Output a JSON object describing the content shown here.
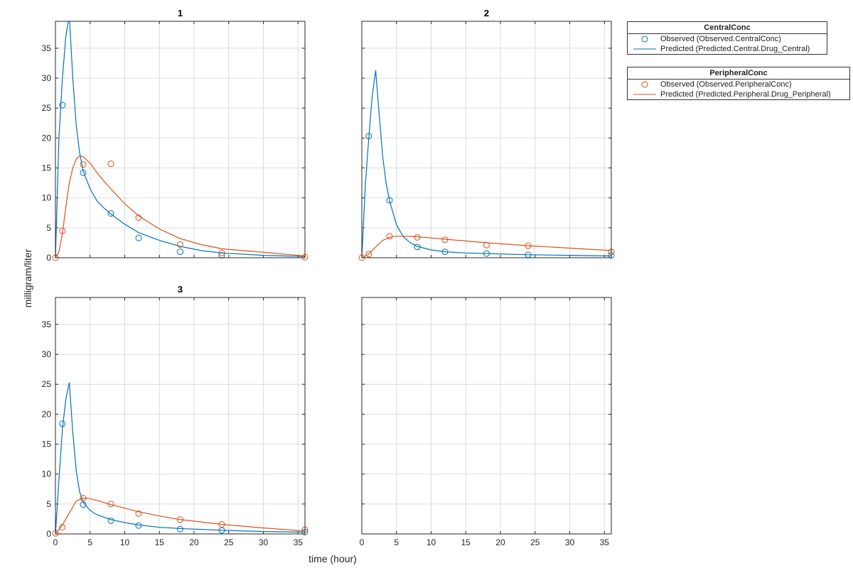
{
  "figure": {
    "xlabel": "time (hour)",
    "ylabel": "milligram/liter"
  },
  "colors": {
    "central": "#0072BD",
    "peripheral": "#D95319",
    "grid": "#dcdcdc",
    "axis": "#262626"
  },
  "legends": [
    {
      "title": "CentralConc",
      "entries": [
        {
          "label": "Observed (Observed.CentralConc)",
          "symbol": "circle"
        },
        {
          "label": "Predicted (Predicted.Central.Drug_Central)",
          "symbol": "line"
        }
      ]
    },
    {
      "title": "PeripheralConc",
      "entries": [
        {
          "label": "Observed (Observed.PeripheralConc)",
          "symbol": "circle"
        },
        {
          "label": "Predicted (Predicted.Peripheral.Drug_Peripheral)",
          "symbol": "line"
        }
      ]
    }
  ],
  "chart_data": [
    {
      "type": "line",
      "title": "1",
      "xlim": [
        0,
        36
      ],
      "ylim": [
        0,
        39.5
      ],
      "xticks": [
        0,
        5,
        10,
        15,
        20,
        25,
        30,
        35
      ],
      "yticks": [
        0,
        5,
        10,
        15,
        20,
        25,
        30,
        35
      ],
      "grid": true,
      "series": [
        {
          "name": "Observed (Observed.CentralConc)",
          "kind": "scatter",
          "color": "central",
          "x": [
            1,
            4,
            8,
            12,
            18,
            24
          ],
          "y": [
            25.5,
            14.2,
            7.4,
            3.3,
            1.0,
            0.4
          ]
        },
        {
          "name": "Predicted (Predicted.Central.Drug_Central)",
          "kind": "line",
          "color": "central",
          "x": [
            0,
            0.5,
            1,
            1.5,
            2,
            2.5,
            3,
            3.5,
            4,
            5,
            6,
            7,
            8,
            10,
            12,
            15,
            18,
            21,
            24,
            30,
            36
          ],
          "y": [
            0,
            20,
            30,
            37,
            40.5,
            30,
            22,
            17.5,
            14.5,
            11.5,
            9.5,
            8.3,
            7.3,
            5.6,
            4.2,
            2.9,
            1.9,
            1.2,
            0.8,
            0.4,
            0.2
          ]
        },
        {
          "name": "Observed (Observed.PeripheralConc)",
          "kind": "scatter",
          "color": "peripheral",
          "x": [
            0,
            1,
            4,
            8,
            12,
            18,
            24,
            36
          ],
          "y": [
            0,
            4.5,
            15.6,
            15.7,
            6.7,
            2.2,
            0.8,
            0.1
          ]
        },
        {
          "name": "Predicted (Predicted.Peripheral.Drug_Peripheral)",
          "kind": "line",
          "color": "peripheral",
          "x": [
            0,
            0.5,
            1,
            1.5,
            2,
            2.5,
            3,
            3.5,
            4,
            5,
            6,
            7,
            8,
            10,
            12,
            15,
            18,
            21,
            24,
            30,
            36
          ],
          "y": [
            0,
            1,
            4,
            8.5,
            12.5,
            15,
            16.5,
            17,
            16.9,
            15.8,
            14.2,
            12.8,
            11.5,
            9.0,
            7.0,
            4.8,
            3.2,
            2.2,
            1.5,
            0.9,
            0.3
          ]
        }
      ]
    },
    {
      "type": "line",
      "title": "2",
      "xlim": [
        0,
        36
      ],
      "ylim": [
        0,
        39.5
      ],
      "xticks": [
        0,
        5,
        10,
        15,
        20,
        25,
        30,
        35
      ],
      "yticks": [
        0,
        5,
        10,
        15,
        20,
        25,
        30,
        35
      ],
      "grid": true,
      "series": [
        {
          "name": "Observed (Observed.CentralConc)",
          "kind": "scatter",
          "color": "central",
          "x": [
            1,
            4,
            8,
            12,
            18,
            24,
            36
          ],
          "y": [
            20.3,
            9.6,
            1.8,
            1.0,
            0.7,
            0.5,
            0.4
          ]
        },
        {
          "name": "Predicted (Predicted.Central.Drug_Central)",
          "kind": "line",
          "color": "central",
          "x": [
            0,
            0.5,
            1,
            1.5,
            2,
            2.5,
            3,
            3.5,
            4,
            5,
            6,
            7,
            8,
            10,
            12,
            15,
            18,
            24,
            30,
            36
          ],
          "y": [
            0,
            12,
            20,
            27,
            31.3,
            24,
            17,
            12.5,
            9.5,
            5.5,
            3.5,
            2.5,
            1.9,
            1.3,
            1.0,
            0.8,
            0.7,
            0.5,
            0.4,
            0.3
          ]
        },
        {
          "name": "Observed (Observed.PeripheralConc)",
          "kind": "scatter",
          "color": "peripheral",
          "x": [
            0,
            1,
            4,
            8,
            12,
            18,
            24,
            36
          ],
          "y": [
            0,
            0.6,
            3.6,
            3.4,
            3.0,
            2.1,
            2.0,
            1.0
          ]
        },
        {
          "name": "Predicted (Predicted.Peripheral.Drug_Peripheral)",
          "kind": "line",
          "color": "peripheral",
          "x": [
            0,
            1,
            2,
            3,
            4,
            5,
            6,
            8,
            10,
            12,
            15,
            18,
            24,
            30,
            36
          ],
          "y": [
            0,
            0.6,
            1.8,
            2.9,
            3.4,
            3.6,
            3.6,
            3.5,
            3.3,
            3.1,
            2.8,
            2.5,
            2.0,
            1.6,
            1.2
          ]
        }
      ]
    },
    {
      "type": "line",
      "title": "3",
      "xlim": [
        0,
        36
      ],
      "ylim": [
        0,
        39.5
      ],
      "xticks": [
        0,
        5,
        10,
        15,
        20,
        25,
        30,
        35
      ],
      "yticks": [
        0,
        5,
        10,
        15,
        20,
        25,
        30,
        35
      ],
      "grid": true,
      "series": [
        {
          "name": "Observed (Observed.CentralConc)",
          "kind": "scatter",
          "color": "central",
          "x": [
            1,
            4,
            8,
            12,
            18,
            24,
            36
          ],
          "y": [
            18.4,
            4.9,
            2.2,
            1.4,
            0.8,
            0.6,
            0.3
          ]
        },
        {
          "name": "Predicted (Predicted.Central.Drug_Central)",
          "kind": "line",
          "color": "central",
          "x": [
            0,
            0.5,
            1,
            1.5,
            2,
            2.5,
            3,
            3.5,
            4,
            5,
            6,
            8,
            10,
            12,
            15,
            18,
            24,
            30,
            36
          ],
          "y": [
            0,
            9,
            17.5,
            22.5,
            25.3,
            17,
            10.5,
            7,
            5.3,
            3.9,
            3.2,
            2.4,
            1.9,
            1.5,
            1.1,
            0.9,
            0.6,
            0.4,
            0.3
          ]
        },
        {
          "name": "Observed (Observed.PeripheralConc)",
          "kind": "scatter",
          "color": "peripheral",
          "x": [
            0,
            1,
            4,
            8,
            12,
            18,
            24,
            36
          ],
          "y": [
            0.1,
            1.1,
            6.0,
            5.0,
            3.4,
            2.4,
            1.6,
            0.7
          ]
        },
        {
          "name": "Predicted (Predicted.Peripheral.Drug_Peripheral)",
          "kind": "line",
          "color": "peripheral",
          "x": [
            0,
            1,
            2,
            3,
            4,
            5,
            6,
            8,
            10,
            12,
            15,
            18,
            24,
            30,
            36
          ],
          "y": [
            0,
            1.5,
            3.5,
            5.5,
            6.0,
            5.9,
            5.6,
            4.9,
            4.3,
            3.7,
            3.0,
            2.4,
            1.6,
            1.0,
            0.5
          ]
        }
      ]
    },
    {
      "type": "line",
      "title": "",
      "xlim": [
        0,
        36
      ],
      "ylim": [
        0,
        39.5
      ],
      "xticks": [
        0,
        5,
        10,
        15,
        20,
        25,
        30,
        35
      ],
      "yticks": [
        0,
        5,
        10,
        15,
        20,
        25,
        30,
        35
      ],
      "grid": true,
      "series": []
    }
  ]
}
